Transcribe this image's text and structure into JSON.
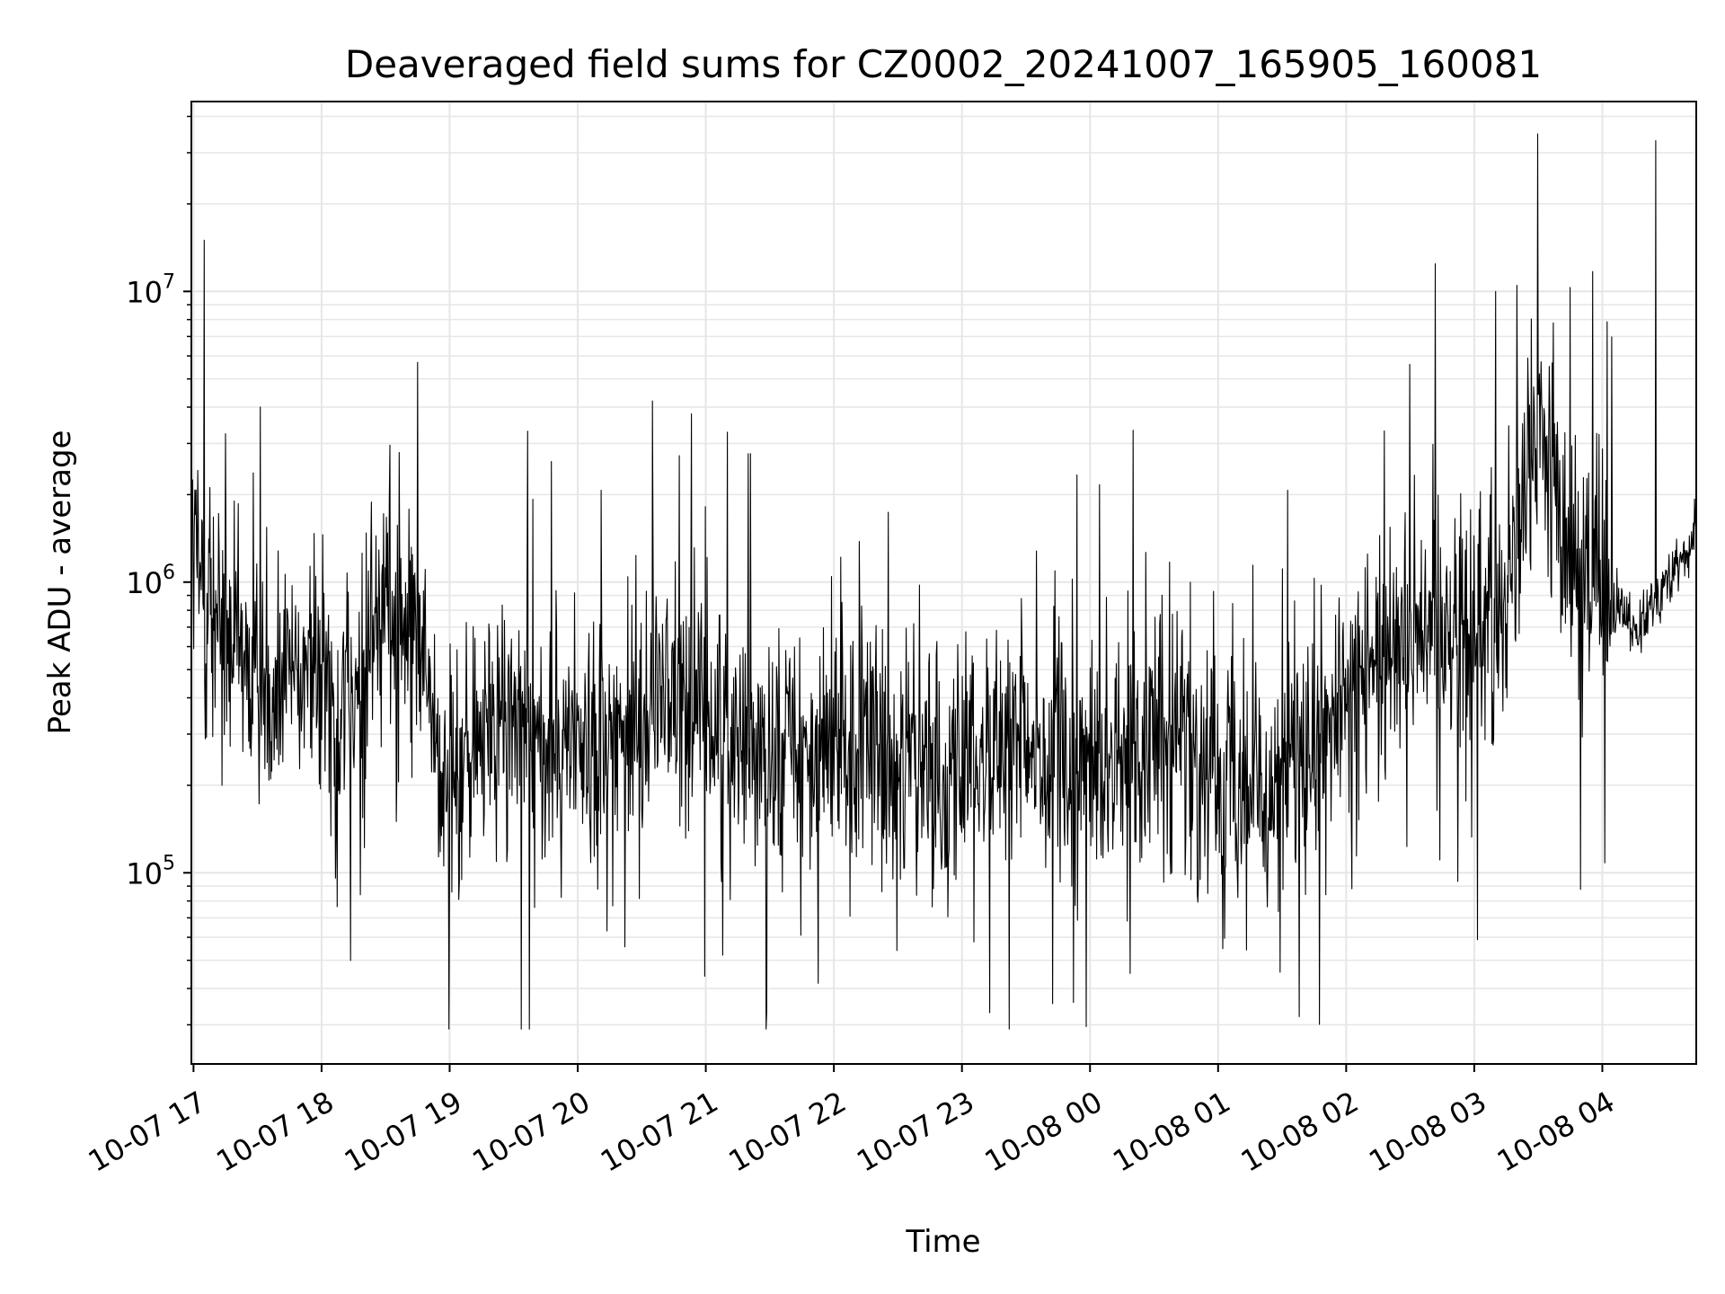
{
  "chart_data": {
    "type": "line",
    "title": "Deaveraged field sums for CZ0002_20241007_165905_160081",
    "xlabel": "Time",
    "ylabel": "Peak ADU - average",
    "y_scale": "log",
    "ylim": [
      22000,
      45000000
    ],
    "xlim": [
      "2024-10-07 16:59",
      "2024-10-08 04:44"
    ],
    "grid": true,
    "legend": "none",
    "x_ticks": [
      "10-07 17",
      "10-07 18",
      "10-07 19",
      "10-07 20",
      "10-07 21",
      "10-07 22",
      "10-07 23",
      "10-08 00",
      "10-08 01",
      "10-08 02",
      "10-08 03",
      "10-08 04"
    ],
    "y_ticks": [
      {
        "value": 100000,
        "base": "10",
        "exp": "5"
      },
      {
        "value": 1000000,
        "base": "10",
        "exp": "6"
      },
      {
        "value": 10000000,
        "base": "10",
        "exp": "7"
      }
    ],
    "line_color": "#000000",
    "grid_color": "#e6e6e6",
    "series": [
      {
        "x": [
          "2024-10-07 17:00",
          "2024-10-07 17:15",
          "2024-10-07 17:30",
          "2024-10-07 17:45",
          "2024-10-07 18:00",
          "2024-10-07 18:15",
          "2024-10-07 18:30",
          "2024-10-07 18:45",
          "2024-10-07 19:00",
          "2024-10-07 19:15",
          "2024-10-07 19:30",
          "2024-10-07 19:45",
          "2024-10-07 20:00",
          "2024-10-07 20:15",
          "2024-10-07 20:30",
          "2024-10-07 20:45",
          "2024-10-07 21:00",
          "2024-10-07 21:15",
          "2024-10-07 21:30",
          "2024-10-07 21:45",
          "2024-10-07 22:00",
          "2024-10-07 22:15",
          "2024-10-07 22:30",
          "2024-10-07 22:45",
          "2024-10-07 23:00",
          "2024-10-07 23:15",
          "2024-10-07 23:30",
          "2024-10-07 23:45",
          "2024-10-08 00:00",
          "2024-10-08 00:15",
          "2024-10-08 00:30",
          "2024-10-08 00:45",
          "2024-10-08 01:00",
          "2024-10-08 01:15",
          "2024-10-08 01:30",
          "2024-10-08 01:45",
          "2024-10-08 02:00",
          "2024-10-08 02:15",
          "2024-10-08 02:30",
          "2024-10-08 02:45",
          "2024-10-08 03:00",
          "2024-10-08 03:15",
          "2024-10-08 03:30",
          "2024-10-08 03:45",
          "2024-10-08 04:00",
          "2024-10-08 04:15",
          "2024-10-08 04:30",
          "2024-10-08 04:44"
        ],
        "values": [
          1200000,
          600000,
          450000,
          550000,
          450000,
          380000,
          900000,
          650000,
          180000,
          300000,
          350000,
          250000,
          280000,
          300000,
          320000,
          450000,
          330000,
          300000,
          280000,
          260000,
          250000,
          270000,
          240000,
          220000,
          230000,
          250000,
          260000,
          240000,
          210000,
          250000,
          350000,
          260000,
          220000,
          200000,
          210000,
          230000,
          400000,
          550000,
          700000,
          800000,
          750000,
          900000,
          3500000,
          1200000,
          900000,
          700000,
          1000000,
          1400000
        ]
      }
    ],
    "annotations": [
      {
        "type": "spike",
        "x": "2024-10-07 17:05",
        "value": 15000000
      },
      {
        "type": "spike",
        "x": "2024-10-07 18:45",
        "value": 5700000
      },
      {
        "type": "spike",
        "x": "2024-10-07 20:35",
        "value": 4200000
      },
      {
        "type": "spike",
        "x": "2024-10-08 03:10",
        "value": 10000000
      },
      {
        "type": "spike",
        "x": "2024-10-08 03:20",
        "value": 10500000
      },
      {
        "type": "spike",
        "x": "2024-10-08 04:25",
        "value": 33000000
      },
      {
        "type": "dip",
        "x": "2024-10-07 23:13",
        "value": 33000
      },
      {
        "type": "dip",
        "x": "2024-10-08 01:38",
        "value": 32000
      }
    ]
  }
}
